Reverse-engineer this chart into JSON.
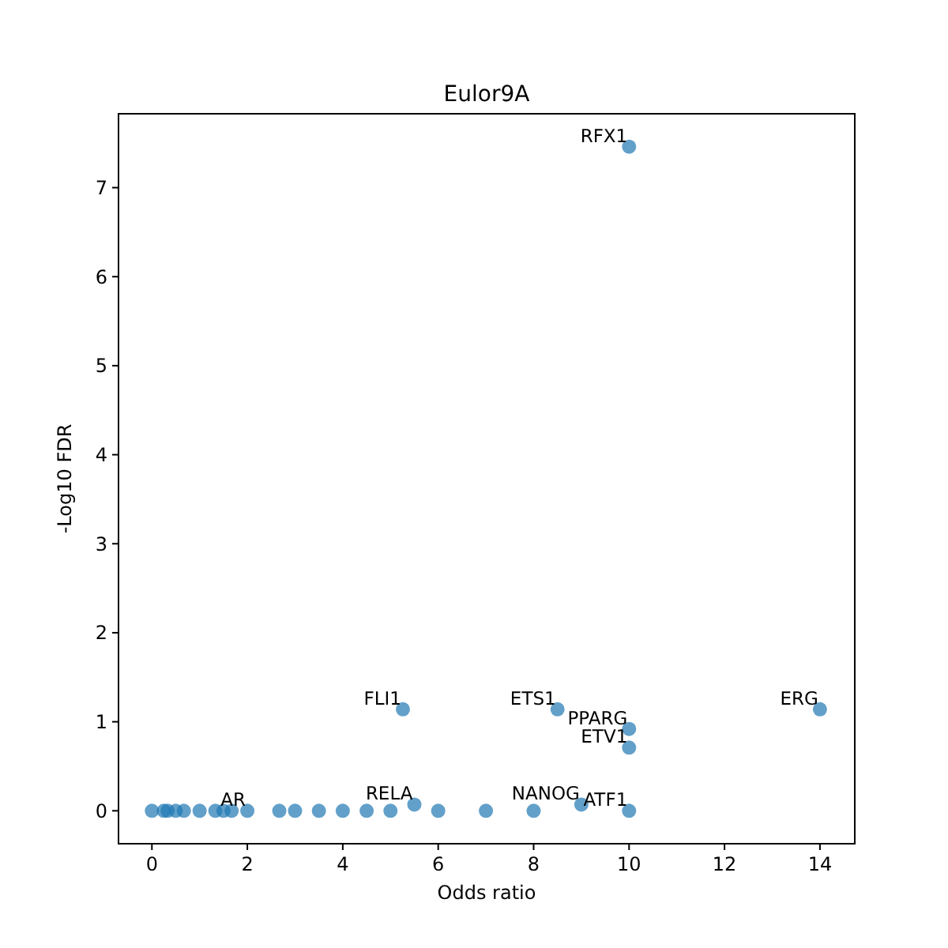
{
  "chart_data": {
    "type": "scatter",
    "title": "Eulor9A",
    "xlabel": "Odds ratio",
    "ylabel": "-Log10 FDR",
    "series": [
      {
        "color": "#1f77b4",
        "x": [
          0,
          0.25,
          0.33,
          0.5,
          0.67,
          1,
          1.33,
          1.5,
          1.67,
          2,
          2.67,
          3,
          3.5,
          4,
          4.5,
          5,
          6,
          7,
          8,
          10,
          5.5,
          9,
          10,
          10,
          5.26,
          8.5,
          14,
          10
        ],
        "values": [
          0,
          0,
          0,
          0,
          0,
          0,
          0,
          0,
          0,
          0,
          0,
          0,
          0,
          0,
          0,
          0,
          0,
          0,
          0,
          0,
          0.07,
          0.07,
          0.71,
          0.92,
          1.14,
          1.14,
          1.14,
          7.46
        ]
      }
    ],
    "annotations": [
      {
        "text": "RFX1",
        "x": 10,
        "y": 7.46
      },
      {
        "text": "FLI1",
        "x": 5.26,
        "y": 1.14
      },
      {
        "text": "ETS1",
        "x": 8.5,
        "y": 1.14
      },
      {
        "text": "PPARG",
        "x": 10,
        "y": 0.92
      },
      {
        "text": "ERG",
        "x": 14,
        "y": 1.14
      },
      {
        "text": "ETV1",
        "x": 10,
        "y": 0.71
      },
      {
        "text": "AR",
        "x": 2,
        "y": 0
      },
      {
        "text": "RELA",
        "x": 5.5,
        "y": 0.07
      },
      {
        "text": "NANOG",
        "x": 9,
        "y": 0.07
      },
      {
        "text": "ATF1",
        "x": 10,
        "y": 0
      }
    ],
    "xlim": [
      -0.7,
      14.73
    ],
    "ylim": [
      -0.37,
      7.83
    ],
    "xticks": [
      0,
      2,
      4,
      6,
      8,
      10,
      12,
      14
    ],
    "yticks": [
      0,
      1,
      2,
      3,
      4,
      5,
      6,
      7
    ],
    "marker": "circle",
    "grid": false
  }
}
